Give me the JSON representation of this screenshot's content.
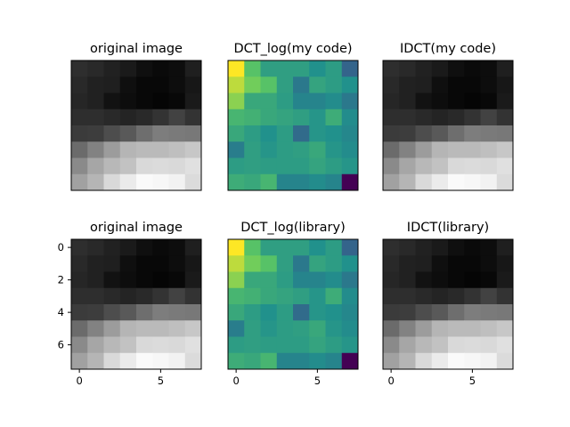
{
  "chart_data": [
    {
      "type": "heatmap",
      "title": "original image",
      "colormap": "gray",
      "show_axes": false,
      "values": [
        [
          0.18,
          0.16,
          0.13,
          0.1,
          0.06,
          0.04,
          0.05,
          0.12
        ],
        [
          0.16,
          0.13,
          0.12,
          0.06,
          0.03,
          0.03,
          0.05,
          0.09
        ],
        [
          0.15,
          0.13,
          0.07,
          0.05,
          0.03,
          0.02,
          0.03,
          0.1
        ],
        [
          0.18,
          0.18,
          0.16,
          0.14,
          0.16,
          0.2,
          0.26,
          0.2
        ],
        [
          0.23,
          0.24,
          0.3,
          0.35,
          0.43,
          0.49,
          0.48,
          0.47
        ],
        [
          0.42,
          0.51,
          0.61,
          0.71,
          0.73,
          0.73,
          0.75,
          0.78
        ],
        [
          0.54,
          0.65,
          0.72,
          0.76,
          0.85,
          0.86,
          0.85,
          0.88
        ],
        [
          0.63,
          0.71,
          0.85,
          0.92,
          0.98,
          0.97,
          0.95,
          0.86
        ]
      ]
    },
    {
      "type": "heatmap",
      "title": "DCT_log(my code)",
      "colormap": "viridis",
      "show_axes": false,
      "values": [
        [
          1.0,
          0.72,
          0.56,
          0.56,
          0.56,
          0.5,
          0.55,
          0.32
        ],
        [
          0.9,
          0.78,
          0.72,
          0.56,
          0.4,
          0.58,
          0.55,
          0.5
        ],
        [
          0.82,
          0.6,
          0.6,
          0.55,
          0.45,
          0.45,
          0.48,
          0.4
        ],
        [
          0.66,
          0.64,
          0.6,
          0.58,
          0.56,
          0.52,
          0.62,
          0.48
        ],
        [
          0.6,
          0.55,
          0.5,
          0.55,
          0.35,
          0.52,
          0.5,
          0.46
        ],
        [
          0.42,
          0.56,
          0.52,
          0.55,
          0.56,
          0.6,
          0.52,
          0.48
        ],
        [
          0.55,
          0.56,
          0.55,
          0.55,
          0.55,
          0.58,
          0.55,
          0.52
        ],
        [
          0.62,
          0.6,
          0.66,
          0.45,
          0.45,
          0.48,
          0.45,
          0.0
        ]
      ]
    },
    {
      "type": "heatmap",
      "title": "IDCT(my code)",
      "colormap": "gray",
      "show_axes": false,
      "values": [
        [
          0.18,
          0.16,
          0.13,
          0.1,
          0.06,
          0.04,
          0.05,
          0.12
        ],
        [
          0.16,
          0.13,
          0.12,
          0.06,
          0.03,
          0.03,
          0.05,
          0.09
        ],
        [
          0.15,
          0.13,
          0.07,
          0.05,
          0.03,
          0.02,
          0.03,
          0.1
        ],
        [
          0.18,
          0.18,
          0.16,
          0.14,
          0.16,
          0.2,
          0.26,
          0.2
        ],
        [
          0.23,
          0.24,
          0.3,
          0.35,
          0.43,
          0.49,
          0.48,
          0.47
        ],
        [
          0.42,
          0.51,
          0.61,
          0.71,
          0.73,
          0.73,
          0.75,
          0.78
        ],
        [
          0.54,
          0.65,
          0.72,
          0.76,
          0.85,
          0.86,
          0.85,
          0.88
        ],
        [
          0.63,
          0.71,
          0.85,
          0.92,
          0.98,
          0.97,
          0.95,
          0.86
        ]
      ]
    },
    {
      "type": "heatmap",
      "title": "original image",
      "colormap": "gray",
      "show_axes": true,
      "xticks": [
        "0",
        "5"
      ],
      "xtick_values": [
        0,
        5
      ],
      "yticks": [
        "0",
        "2",
        "4",
        "6"
      ],
      "ytick_values": [
        0,
        2,
        4,
        6
      ],
      "values": [
        [
          0.18,
          0.16,
          0.13,
          0.1,
          0.06,
          0.04,
          0.05,
          0.12
        ],
        [
          0.16,
          0.13,
          0.12,
          0.06,
          0.03,
          0.03,
          0.05,
          0.09
        ],
        [
          0.15,
          0.13,
          0.07,
          0.05,
          0.03,
          0.02,
          0.03,
          0.1
        ],
        [
          0.18,
          0.18,
          0.16,
          0.14,
          0.16,
          0.2,
          0.26,
          0.2
        ],
        [
          0.23,
          0.24,
          0.3,
          0.35,
          0.43,
          0.49,
          0.48,
          0.47
        ],
        [
          0.42,
          0.51,
          0.61,
          0.71,
          0.73,
          0.73,
          0.75,
          0.78
        ],
        [
          0.54,
          0.65,
          0.72,
          0.76,
          0.85,
          0.86,
          0.85,
          0.88
        ],
        [
          0.63,
          0.71,
          0.85,
          0.92,
          0.98,
          0.97,
          0.95,
          0.86
        ]
      ]
    },
    {
      "type": "heatmap",
      "title": "DCT_log(library)",
      "colormap": "viridis",
      "show_axes": true,
      "xticks": [
        "0",
        "5"
      ],
      "xtick_values": [
        0,
        5
      ],
      "yticks": [],
      "ytick_values": [],
      "values": [
        [
          1.0,
          0.72,
          0.56,
          0.56,
          0.56,
          0.5,
          0.55,
          0.32
        ],
        [
          0.9,
          0.78,
          0.72,
          0.56,
          0.4,
          0.58,
          0.55,
          0.5
        ],
        [
          0.82,
          0.6,
          0.6,
          0.55,
          0.45,
          0.45,
          0.48,
          0.4
        ],
        [
          0.66,
          0.64,
          0.6,
          0.58,
          0.56,
          0.52,
          0.62,
          0.48
        ],
        [
          0.6,
          0.55,
          0.5,
          0.55,
          0.35,
          0.52,
          0.5,
          0.46
        ],
        [
          0.42,
          0.56,
          0.52,
          0.55,
          0.56,
          0.6,
          0.52,
          0.48
        ],
        [
          0.55,
          0.56,
          0.55,
          0.55,
          0.55,
          0.58,
          0.55,
          0.52
        ],
        [
          0.62,
          0.6,
          0.66,
          0.45,
          0.45,
          0.48,
          0.45,
          0.0
        ]
      ]
    },
    {
      "type": "heatmap",
      "title": "IDCT(library)",
      "colormap": "gray",
      "show_axes": true,
      "xticks": [
        "0",
        "5"
      ],
      "xtick_values": [
        0,
        5
      ],
      "yticks": [],
      "ytick_values": [],
      "values": [
        [
          0.18,
          0.16,
          0.13,
          0.1,
          0.06,
          0.04,
          0.05,
          0.12
        ],
        [
          0.16,
          0.13,
          0.12,
          0.06,
          0.03,
          0.03,
          0.05,
          0.09
        ],
        [
          0.15,
          0.13,
          0.07,
          0.05,
          0.03,
          0.02,
          0.03,
          0.1
        ],
        [
          0.18,
          0.18,
          0.16,
          0.14,
          0.16,
          0.2,
          0.26,
          0.2
        ],
        [
          0.23,
          0.24,
          0.3,
          0.35,
          0.43,
          0.49,
          0.48,
          0.47
        ],
        [
          0.42,
          0.51,
          0.61,
          0.71,
          0.73,
          0.73,
          0.75,
          0.78
        ],
        [
          0.54,
          0.65,
          0.72,
          0.76,
          0.85,
          0.86,
          0.85,
          0.88
        ],
        [
          0.63,
          0.71,
          0.85,
          0.92,
          0.98,
          0.97,
          0.95,
          0.86
        ]
      ]
    }
  ]
}
